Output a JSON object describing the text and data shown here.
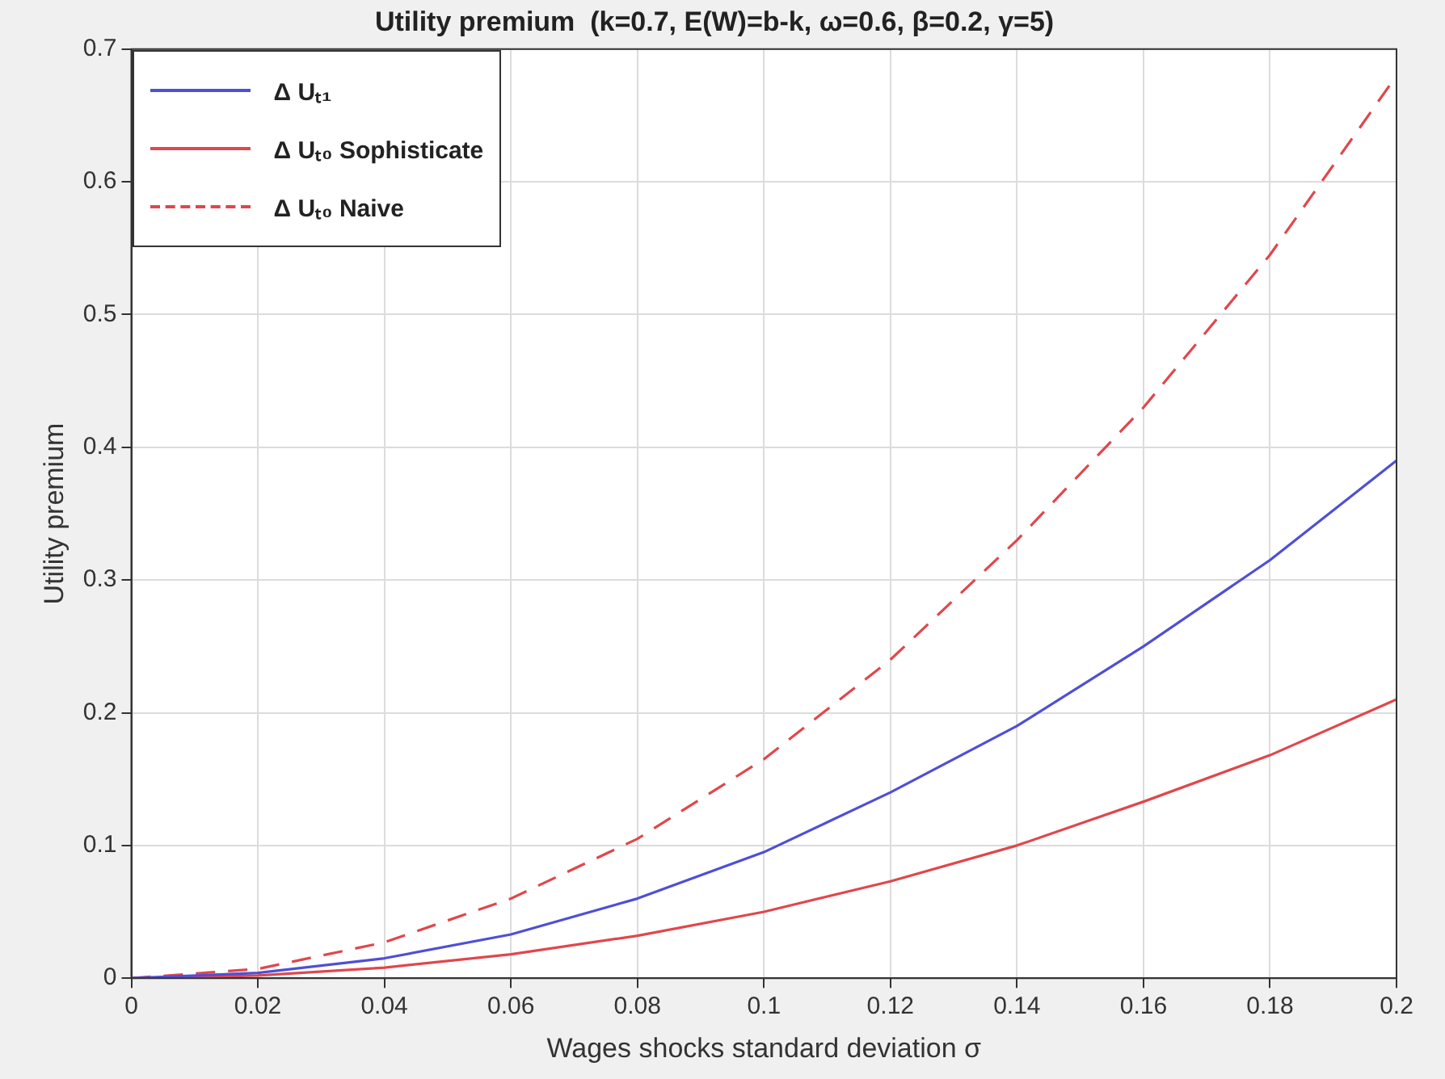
{
  "chart_data": {
    "type": "line",
    "title": "Utility premium  (k=0.7, E(W)=b-k, ω=0.6, β=0.2, γ=5)",
    "xlabel": "Wages shocks standard deviation σ",
    "ylabel": "Utility premium",
    "x": [
      0,
      0.02,
      0.04,
      0.06,
      0.08,
      0.1,
      0.12,
      0.14,
      0.16,
      0.18,
      0.2
    ],
    "series": [
      {
        "name": "Δ Uₜ₁",
        "color": "#4f4fd6",
        "line_style": "solid",
        "values": [
          0,
          0.004,
          0.015,
          0.033,
          0.06,
          0.095,
          0.14,
          0.19,
          0.25,
          0.315,
          0.39
        ]
      },
      {
        "name": "Δ Uₜ₀ Sophisticate",
        "color": "#e0474c",
        "line_style": "solid",
        "values": [
          0,
          0.002,
          0.008,
          0.018,
          0.032,
          0.05,
          0.073,
          0.1,
          0.133,
          0.168,
          0.21
        ]
      },
      {
        "name": "Δ Uₜ₀ Naive",
        "color": "#e0474c",
        "line_style": "dashed",
        "values": [
          0,
          0.007,
          0.027,
          0.06,
          0.105,
          0.165,
          0.24,
          0.33,
          0.43,
          0.545,
          0.68
        ]
      }
    ],
    "xlim": [
      0,
      0.2
    ],
    "xticks": [
      0,
      0.02,
      0.04,
      0.06,
      0.08,
      0.1,
      0.12,
      0.14,
      0.16,
      0.18,
      0.2
    ],
    "ylim": [
      0,
      0.7
    ],
    "yticks": [
      0,
      0.1,
      0.2,
      0.3,
      0.4,
      0.5,
      0.6,
      0.7
    ],
    "grid": true,
    "legend": "top left",
    "marker": "none"
  }
}
